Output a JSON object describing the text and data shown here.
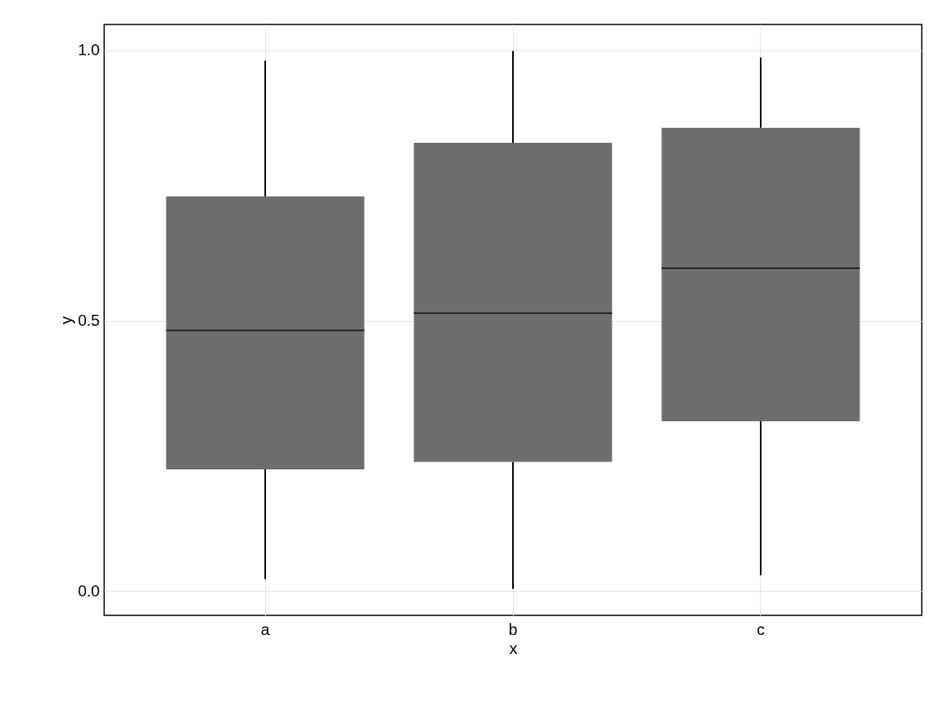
{
  "chart_data": {
    "type": "box",
    "xlabel": "x",
    "ylabel": "y",
    "categories": [
      "a",
      "b",
      "c"
    ],
    "series": [
      {
        "color": "#666666",
        "boxes": [
          {
            "low": 0.022,
            "q1": 0.225,
            "median": 0.482,
            "q3": 0.73,
            "high": 0.981
          },
          {
            "low": 0.004,
            "q1": 0.239,
            "median": 0.514,
            "q3": 0.829,
            "high": 0.999
          },
          {
            "low": 0.029,
            "q1": 0.314,
            "median": 0.597,
            "q3": 0.857,
            "high": 0.987
          }
        ]
      }
    ],
    "ylim": [
      -0.045,
      1.048
    ],
    "yticks": [
      {
        "value": 0,
        "label": "0.0"
      },
      {
        "value": 0.5,
        "label": "0.5"
      },
      {
        "value": 1,
        "label": "1.0"
      }
    ],
    "grid": true
  }
}
